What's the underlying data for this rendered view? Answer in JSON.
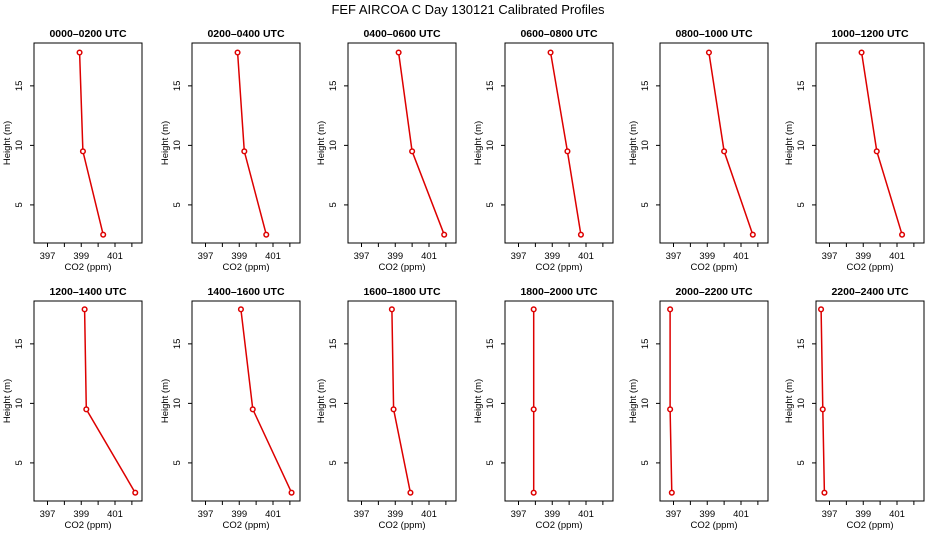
{
  "chart_data": {
    "title": "FEF AIRCOA C  Day 130121  Calibrated Profiles",
    "type": "line",
    "xlabel": "CO2 (ppm)",
    "ylabel": "Height (m)",
    "xlim": [
      396.2,
      402.6
    ],
    "ylim": [
      1.8,
      18.6
    ],
    "xticks": [
      397,
      399,
      401
    ],
    "yticks": [
      5,
      10,
      15
    ],
    "series_color": "#dd0000",
    "grid": false,
    "panels": [
      {
        "name": "0000–0200 UTC",
        "co2": [
          398.9,
          399.1,
          400.3
        ],
        "height": [
          17.8,
          9.5,
          2.5
        ]
      },
      {
        "name": "0200–0400 UTC",
        "co2": [
          398.9,
          399.3,
          400.6
        ],
        "height": [
          17.8,
          9.5,
          2.5
        ]
      },
      {
        "name": "0400–0600 UTC",
        "co2": [
          399.2,
          400.0,
          401.9
        ],
        "height": [
          17.8,
          9.5,
          2.5
        ]
      },
      {
        "name": "0600–0800 UTC",
        "co2": [
          398.9,
          399.9,
          400.7
        ],
        "height": [
          17.8,
          9.5,
          2.5
        ]
      },
      {
        "name": "0800–1000 UTC",
        "co2": [
          399.1,
          400.0,
          401.7
        ],
        "height": [
          17.8,
          9.5,
          2.5
        ]
      },
      {
        "name": "1000–1200 UTC",
        "co2": [
          398.9,
          399.8,
          401.3
        ],
        "height": [
          17.8,
          9.5,
          2.5
        ]
      },
      {
        "name": "1200–1400 UTC",
        "co2": [
          399.2,
          399.3,
          402.2
        ],
        "height": [
          17.9,
          9.5,
          2.5
        ]
      },
      {
        "name": "1400–1600 UTC",
        "co2": [
          399.1,
          399.8,
          402.1
        ],
        "height": [
          17.9,
          9.5,
          2.5
        ]
      },
      {
        "name": "1600–1800 UTC",
        "co2": [
          398.8,
          398.9,
          399.9
        ],
        "height": [
          17.9,
          9.5,
          2.5
        ]
      },
      {
        "name": "1800–2000 UTC",
        "co2": [
          397.9,
          397.9,
          397.9
        ],
        "height": [
          17.9,
          9.5,
          2.5
        ]
      },
      {
        "name": "2000–2200 UTC",
        "co2": [
          396.8,
          396.8,
          396.9
        ],
        "height": [
          17.9,
          9.5,
          2.5
        ]
      },
      {
        "name": "2200–2400 UTC",
        "co2": [
          396.5,
          396.6,
          396.7
        ],
        "height": [
          17.9,
          9.5,
          2.5
        ]
      }
    ]
  }
}
